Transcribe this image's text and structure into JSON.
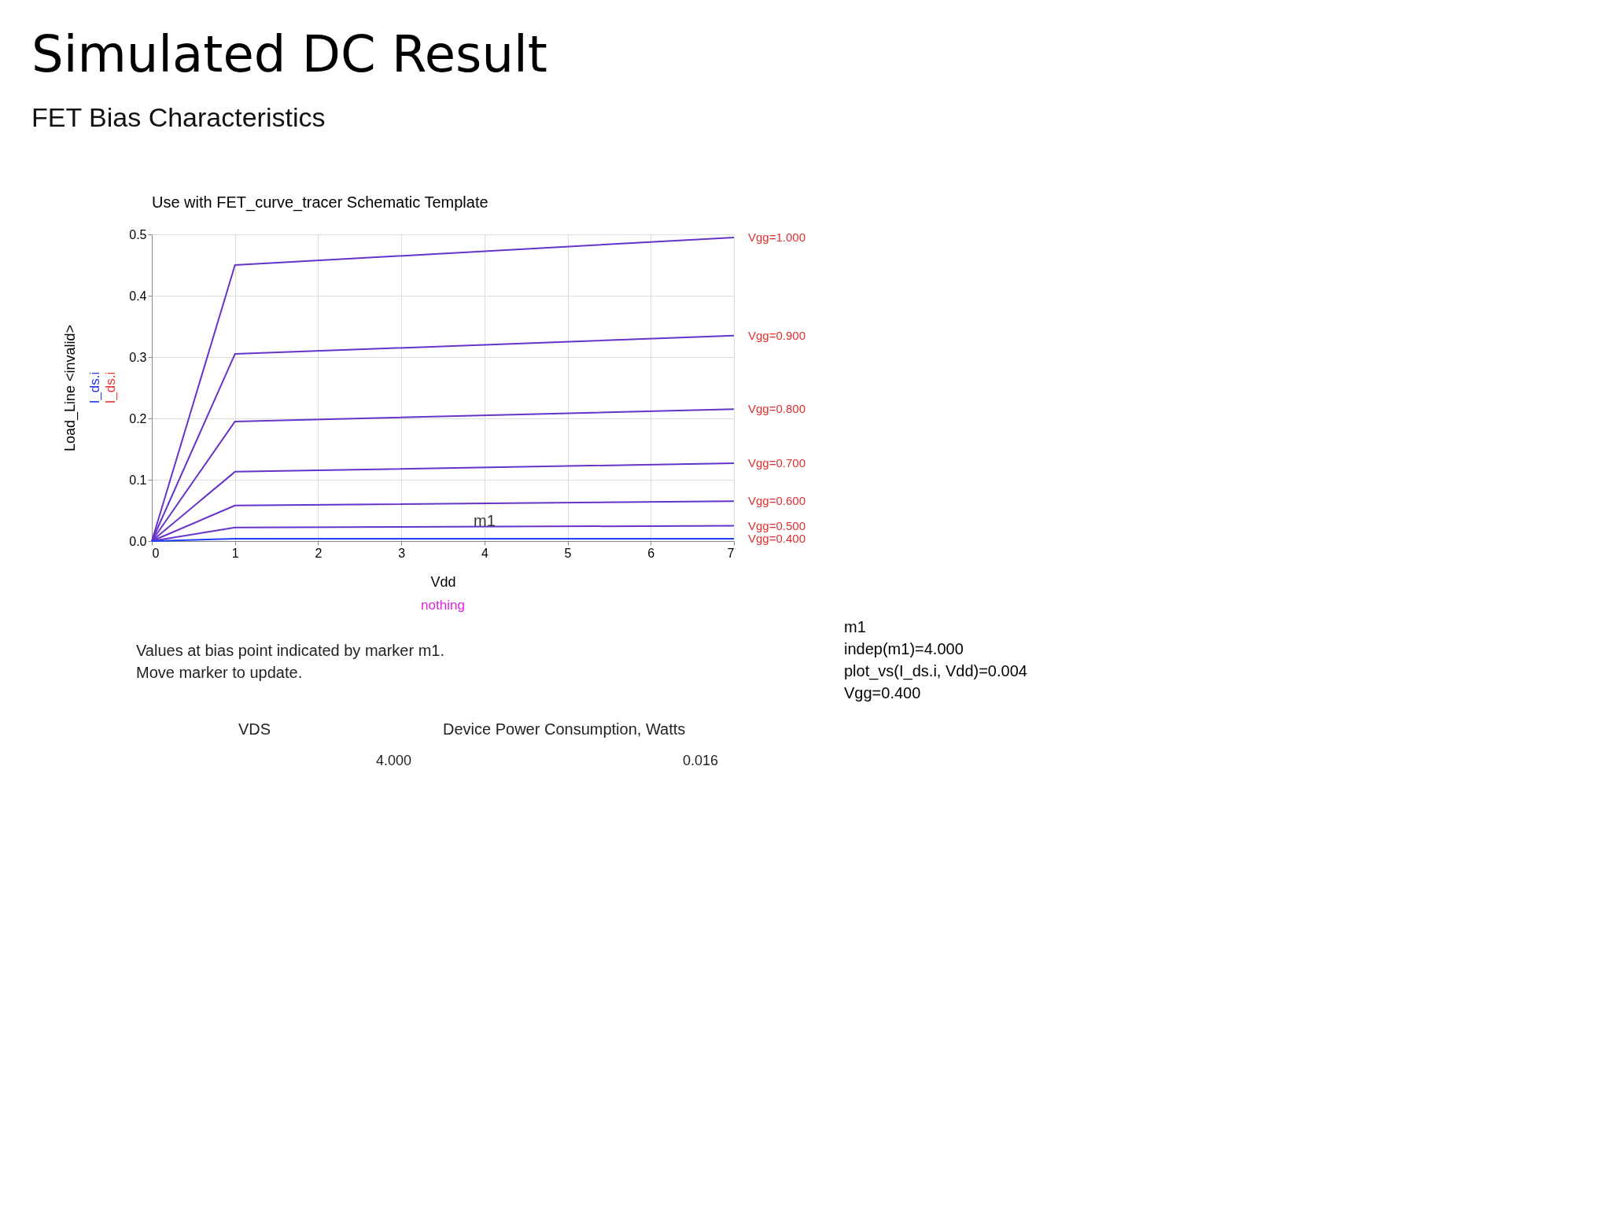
{
  "chart_data": {
    "type": "line",
    "title": "Simulated DC Result",
    "subtitle": "FET Bias Characteristics",
    "xlabel": "Vdd",
    "ylabel": "Load_Line <invalid>",
    "x": [
      0,
      1,
      7
    ],
    "series": [
      {
        "name": "Vgg=1.000",
        "color": "#6633cc",
        "values": [
          0,
          0.45,
          0.495
        ]
      },
      {
        "name": "Vgg=0.900",
        "color": "#6633cc",
        "values": [
          0,
          0.305,
          0.335
        ]
      },
      {
        "name": "Vgg=0.800",
        "color": "#6633cc",
        "values": [
          0,
          0.195,
          0.215
        ]
      },
      {
        "name": "Vgg=0.700",
        "color": "#6633cc",
        "values": [
          0,
          0.113,
          0.127
        ]
      },
      {
        "name": "Vgg=0.600",
        "color": "#6633cc",
        "values": [
          0,
          0.058,
          0.065
        ]
      },
      {
        "name": "Vgg=0.500",
        "color": "#6633cc",
        "values": [
          0,
          0.022,
          0.025
        ]
      },
      {
        "name": "Vgg=0.400",
        "color": "#1f3fff",
        "values": [
          0,
          0.004,
          0.004
        ]
      }
    ],
    "xlim": [
      0,
      7
    ],
    "xticks": [
      0,
      1,
      2,
      3,
      4,
      5,
      6,
      7
    ],
    "ylim": [
      0,
      0.5
    ],
    "yticks": [
      {
        "value": 0,
        "label": "0.0"
      },
      0.1,
      0.2,
      0.3,
      0.4,
      0.5
    ],
    "grid": true,
    "marker": "none",
    "line_style": "solid",
    "annotations": [
      {
        "text": "m1",
        "x": 4,
        "y": 0.004
      },
      "Use with FET_curve_tracer Schematic Template",
      "I_ds.i",
      "I_ds.i",
      "nothing",
      "Values at bias point indicated by marker m1.",
      "Move marker to update.",
      "VDS",
      "Device Power Consumption, Watts",
      "4.000",
      "0.016",
      "m1",
      "indep(m1)=4.000",
      "plot_vs(I_ds.i, Vdd)=0.004",
      "Vgg=0.400"
    ]
  }
}
